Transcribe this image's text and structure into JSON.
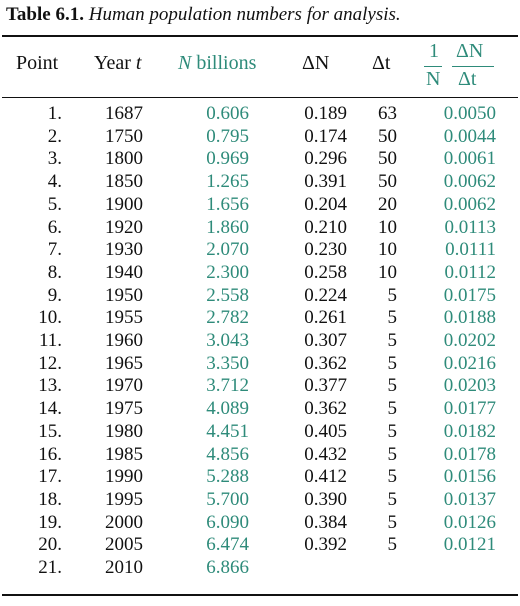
{
  "caption": {
    "label": "Table 6.1.",
    "text": "Human population numbers for analysis."
  },
  "headers": {
    "point": "Point",
    "year": "Year",
    "year_var": "t",
    "n_var": "N",
    "n_unit": "billions",
    "delta_n": "ΔN",
    "delta_t": "Δt",
    "rate_numerator_left": "1",
    "rate_denominator_left": "N",
    "rate_numerator_right": "ΔN",
    "rate_denominator_right": "Δt"
  },
  "colors": {
    "accent": "#2e8b7a",
    "text": "#111111"
  },
  "rows": [
    {
      "point": "1.",
      "year": "1687",
      "n": "0.606",
      "dn": "0.189",
      "dt": "63",
      "rate": "0.0050"
    },
    {
      "point": "2.",
      "year": "1750",
      "n": "0.795",
      "dn": "0.174",
      "dt": "50",
      "rate": "0.0044"
    },
    {
      "point": "3.",
      "year": "1800",
      "n": "0.969",
      "dn": "0.296",
      "dt": "50",
      "rate": "0.0061"
    },
    {
      "point": "4.",
      "year": "1850",
      "n": "1.265",
      "dn": "0.391",
      "dt": "50",
      "rate": "0.0062"
    },
    {
      "point": "5.",
      "year": "1900",
      "n": "1.656",
      "dn": "0.204",
      "dt": "20",
      "rate": "0.0062"
    },
    {
      "point": "6.",
      "year": "1920",
      "n": "1.860",
      "dn": "0.210",
      "dt": "10",
      "rate": "0.0113"
    },
    {
      "point": "7.",
      "year": "1930",
      "n": "2.070",
      "dn": "0.230",
      "dt": "10",
      "rate": "0.0111"
    },
    {
      "point": "8.",
      "year": "1940",
      "n": "2.300",
      "dn": "0.258",
      "dt": "10",
      "rate": "0.0112"
    },
    {
      "point": "9.",
      "year": "1950",
      "n": "2.558",
      "dn": "0.224",
      "dt": "5",
      "rate": "0.0175"
    },
    {
      "point": "10.",
      "year": "1955",
      "n": "2.782",
      "dn": "0.261",
      "dt": "5",
      "rate": "0.0188"
    },
    {
      "point": "11.",
      "year": "1960",
      "n": "3.043",
      "dn": "0.307",
      "dt": "5",
      "rate": "0.0202"
    },
    {
      "point": "12.",
      "year": "1965",
      "n": "3.350",
      "dn": "0.362",
      "dt": "5",
      "rate": "0.0216"
    },
    {
      "point": "13.",
      "year": "1970",
      "n": "3.712",
      "dn": "0.377",
      "dt": "5",
      "rate": "0.0203"
    },
    {
      "point": "14.",
      "year": "1975",
      "n": "4.089",
      "dn": "0.362",
      "dt": "5",
      "rate": "0.0177"
    },
    {
      "point": "15.",
      "year": "1980",
      "n": "4.451",
      "dn": "0.405",
      "dt": "5",
      "rate": "0.0182"
    },
    {
      "point": "16.",
      "year": "1985",
      "n": "4.856",
      "dn": "0.432",
      "dt": "5",
      "rate": "0.0178"
    },
    {
      "point": "17.",
      "year": "1990",
      "n": "5.288",
      "dn": "0.412",
      "dt": "5",
      "rate": "0.0156"
    },
    {
      "point": "18.",
      "year": "1995",
      "n": "5.700",
      "dn": "0.390",
      "dt": "5",
      "rate": "0.0137"
    },
    {
      "point": "19.",
      "year": "2000",
      "n": "6.090",
      "dn": "0.384",
      "dt": "5",
      "rate": "0.0126"
    },
    {
      "point": "20.",
      "year": "2005",
      "n": "6.474",
      "dn": "0.392",
      "dt": "5",
      "rate": "0.0121"
    },
    {
      "point": "21.",
      "year": "2010",
      "n": "6.866",
      "dn": "",
      "dt": "",
      "rate": ""
    }
  ]
}
